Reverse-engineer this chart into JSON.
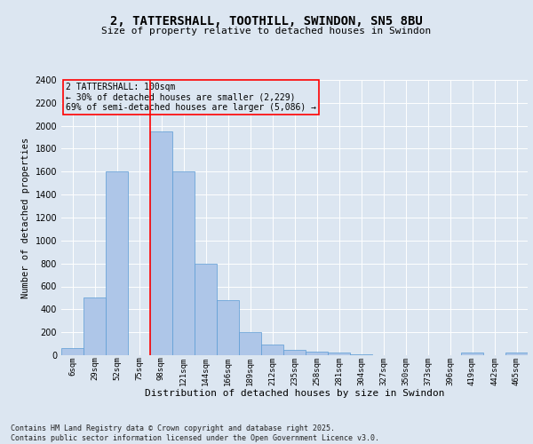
{
  "title1": "2, TATTERSHALL, TOOTHILL, SWINDON, SN5 8BU",
  "title2": "Size of property relative to detached houses in Swindon",
  "xlabel": "Distribution of detached houses by size in Swindon",
  "ylabel": "Number of detached properties",
  "categories": [
    "6sqm",
    "29sqm",
    "52sqm",
    "75sqm",
    "98sqm",
    "121sqm",
    "144sqm",
    "166sqm",
    "189sqm",
    "212sqm",
    "235sqm",
    "258sqm",
    "281sqm",
    "304sqm",
    "327sqm",
    "350sqm",
    "373sqm",
    "396sqm",
    "419sqm",
    "442sqm",
    "465sqm"
  ],
  "values": [
    60,
    500,
    1600,
    0,
    1950,
    1600,
    800,
    480,
    200,
    95,
    45,
    30,
    20,
    10,
    0,
    0,
    0,
    0,
    20,
    0,
    25
  ],
  "bar_color": "#aec6e8",
  "bar_edge_color": "#5b9bd5",
  "background_color": "#dce6f1",
  "grid_color": "#ffffff",
  "vline_color": "red",
  "vline_position": 3.5,
  "annotation_text": "2 TATTERSHALL: 100sqm\n← 30% of detached houses are smaller (2,229)\n69% of semi-detached houses are larger (5,086) →",
  "annotation_box_color": "red",
  "ylim": [
    0,
    2400
  ],
  "yticks": [
    0,
    200,
    400,
    600,
    800,
    1000,
    1200,
    1400,
    1600,
    1800,
    2000,
    2200,
    2400
  ],
  "footer": "Contains HM Land Registry data © Crown copyright and database right 2025.\nContains public sector information licensed under the Open Government Licence v3.0.",
  "title1_fontsize": 10,
  "title2_fontsize": 8,
  "ylabel_fontsize": 7.5,
  "xlabel_fontsize": 8,
  "ytick_fontsize": 7,
  "xtick_fontsize": 6.5,
  "annotation_fontsize": 7,
  "footer_fontsize": 6
}
